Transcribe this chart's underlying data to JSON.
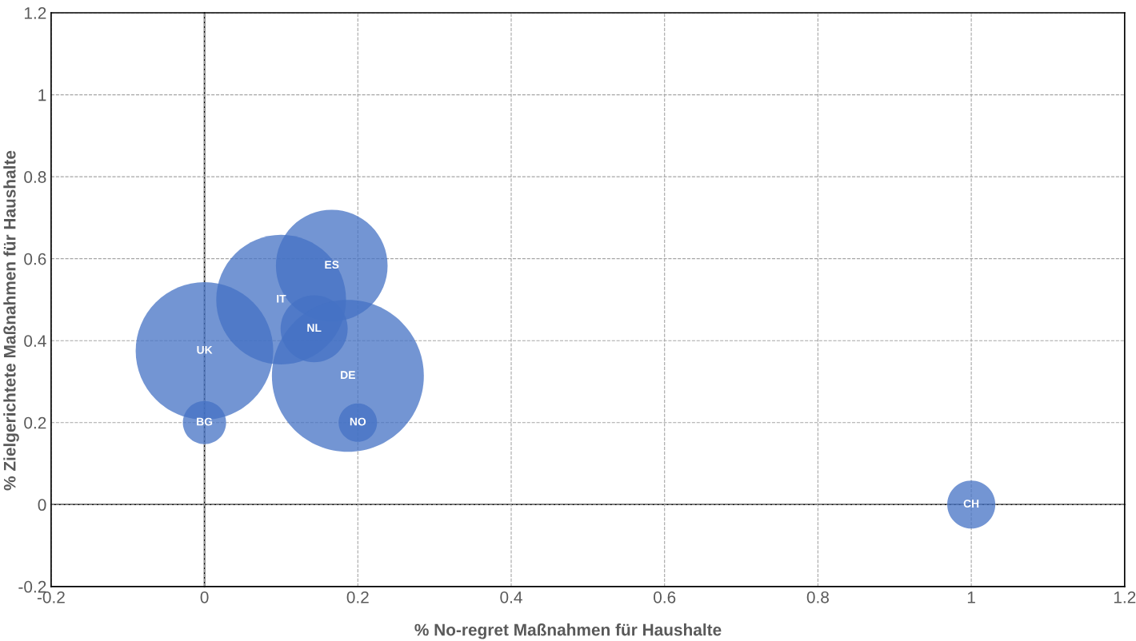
{
  "chart_data": {
    "type": "bubble",
    "xlabel": "% No-regret Maßnahmen für Haushalte",
    "ylabel": "% Zielgerichtete Maßnahmen für Haushalte",
    "xlim": [
      -0.2,
      1.2
    ],
    "xticks": [
      -0.2,
      0,
      0.2,
      0.4,
      0.6,
      0.8,
      1,
      1.2
    ],
    "ylim": [
      -0.2,
      1.2
    ],
    "yticks": [
      -0.2,
      0,
      0.2,
      0.4,
      0.6,
      0.8,
      1,
      1.2
    ],
    "grid": true,
    "legend": false,
    "series": [
      {
        "name": "UK",
        "color": "#4472c4",
        "x": [
          0
        ],
        "values": [
          0.375
        ],
        "sizes": [
          0.82
        ]
      },
      {
        "name": "BG",
        "color": "#4472c4",
        "x": [
          0
        ],
        "values": [
          0.2
        ],
        "sizes": [
          0.081
        ]
      },
      {
        "name": "IT",
        "color": "#4472c4",
        "x": [
          0.1
        ],
        "values": [
          0.5
        ],
        "sizes": [
          0.73
        ]
      },
      {
        "name": "ES",
        "color": "#4472c4",
        "x": [
          0.166
        ],
        "values": [
          0.583
        ],
        "sizes": [
          0.54
        ]
      },
      {
        "name": "NL",
        "color": "#4472c4",
        "x": [
          0.143
        ],
        "values": [
          0.429
        ],
        "sizes": [
          0.195
        ]
      },
      {
        "name": "DE",
        "color": "#4472c4",
        "x": [
          0.187
        ],
        "values": [
          0.314
        ],
        "sizes": [
          1
        ]
      },
      {
        "name": "NO",
        "color": "#4472c4",
        "x": [
          0.2
        ],
        "values": [
          0.2
        ],
        "sizes": [
          0.064
        ]
      },
      {
        "name": "CH",
        "color": "#4472c4",
        "x": [
          1
        ],
        "values": [
          0
        ],
        "sizes": [
          0.1
        ]
      }
    ]
  }
}
